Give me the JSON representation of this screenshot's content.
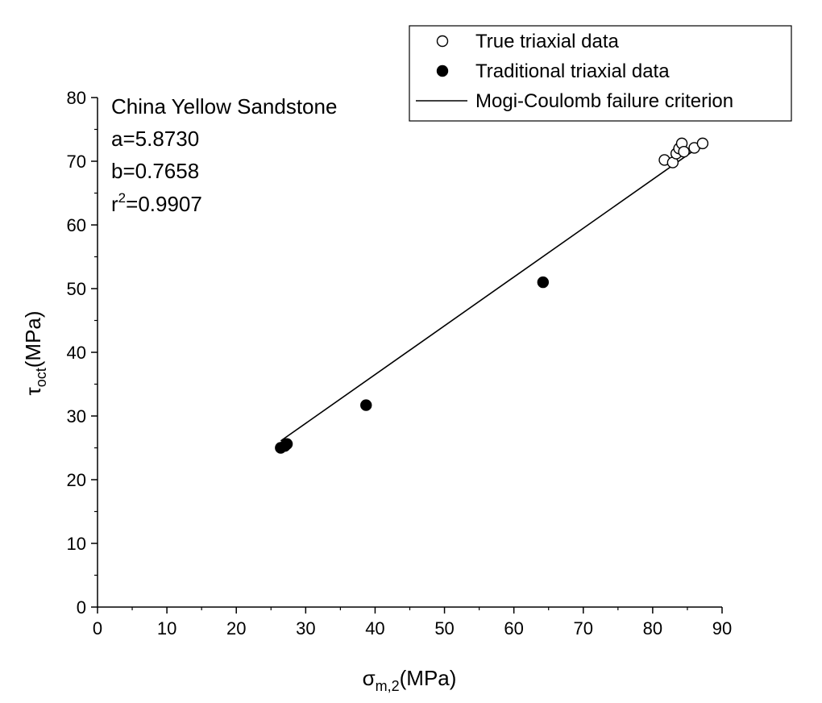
{
  "chart_data": {
    "type": "scatter",
    "xlabel": {
      "main": "σ",
      "sub": "m,2",
      "unit": "(MPa)"
    },
    "ylabel": {
      "main": "τ",
      "sub": "oct",
      "unit": "(MPa)"
    },
    "xlim": [
      0,
      90
    ],
    "ylim": [
      0,
      80
    ],
    "xticks": [
      0,
      10,
      20,
      30,
      40,
      50,
      60,
      70,
      80,
      90
    ],
    "yticks": [
      0,
      10,
      20,
      30,
      40,
      50,
      60,
      70,
      80
    ],
    "grid": false,
    "legend_position": "top-right",
    "annotation": {
      "line1": "China Yellow Sandstone",
      "line2": "a=5.8730",
      "line3": "b=0.7658",
      "line4_base": "r",
      "line4_sup": "2",
      "line4_rest": "=0.9907"
    },
    "series": [
      {
        "name": "True triaxial data",
        "marker": "open-circle",
        "color": "#000000",
        "points": [
          [
            81.7,
            70.2
          ],
          [
            82.9,
            69.8
          ],
          [
            83.4,
            71.2
          ],
          [
            83.8,
            72.0
          ],
          [
            84.2,
            72.8
          ],
          [
            84.5,
            71.5
          ],
          [
            86.0,
            72.1
          ],
          [
            87.2,
            72.8
          ]
        ]
      },
      {
        "name": "Traditional triaxial data",
        "marker": "filled-circle",
        "color": "#000000",
        "points": [
          [
            26.4,
            25.0
          ],
          [
            27.0,
            25.3
          ],
          [
            27.3,
            25.6
          ],
          [
            38.7,
            31.7
          ],
          [
            64.2,
            51.0
          ]
        ]
      },
      {
        "name": "Mogi-Coulomb failure criterion",
        "marker": "line",
        "color": "#000000",
        "line": {
          "a": 5.873,
          "b": 0.7658,
          "x_start": 26.4,
          "x_end": 87.2
        }
      }
    ]
  }
}
